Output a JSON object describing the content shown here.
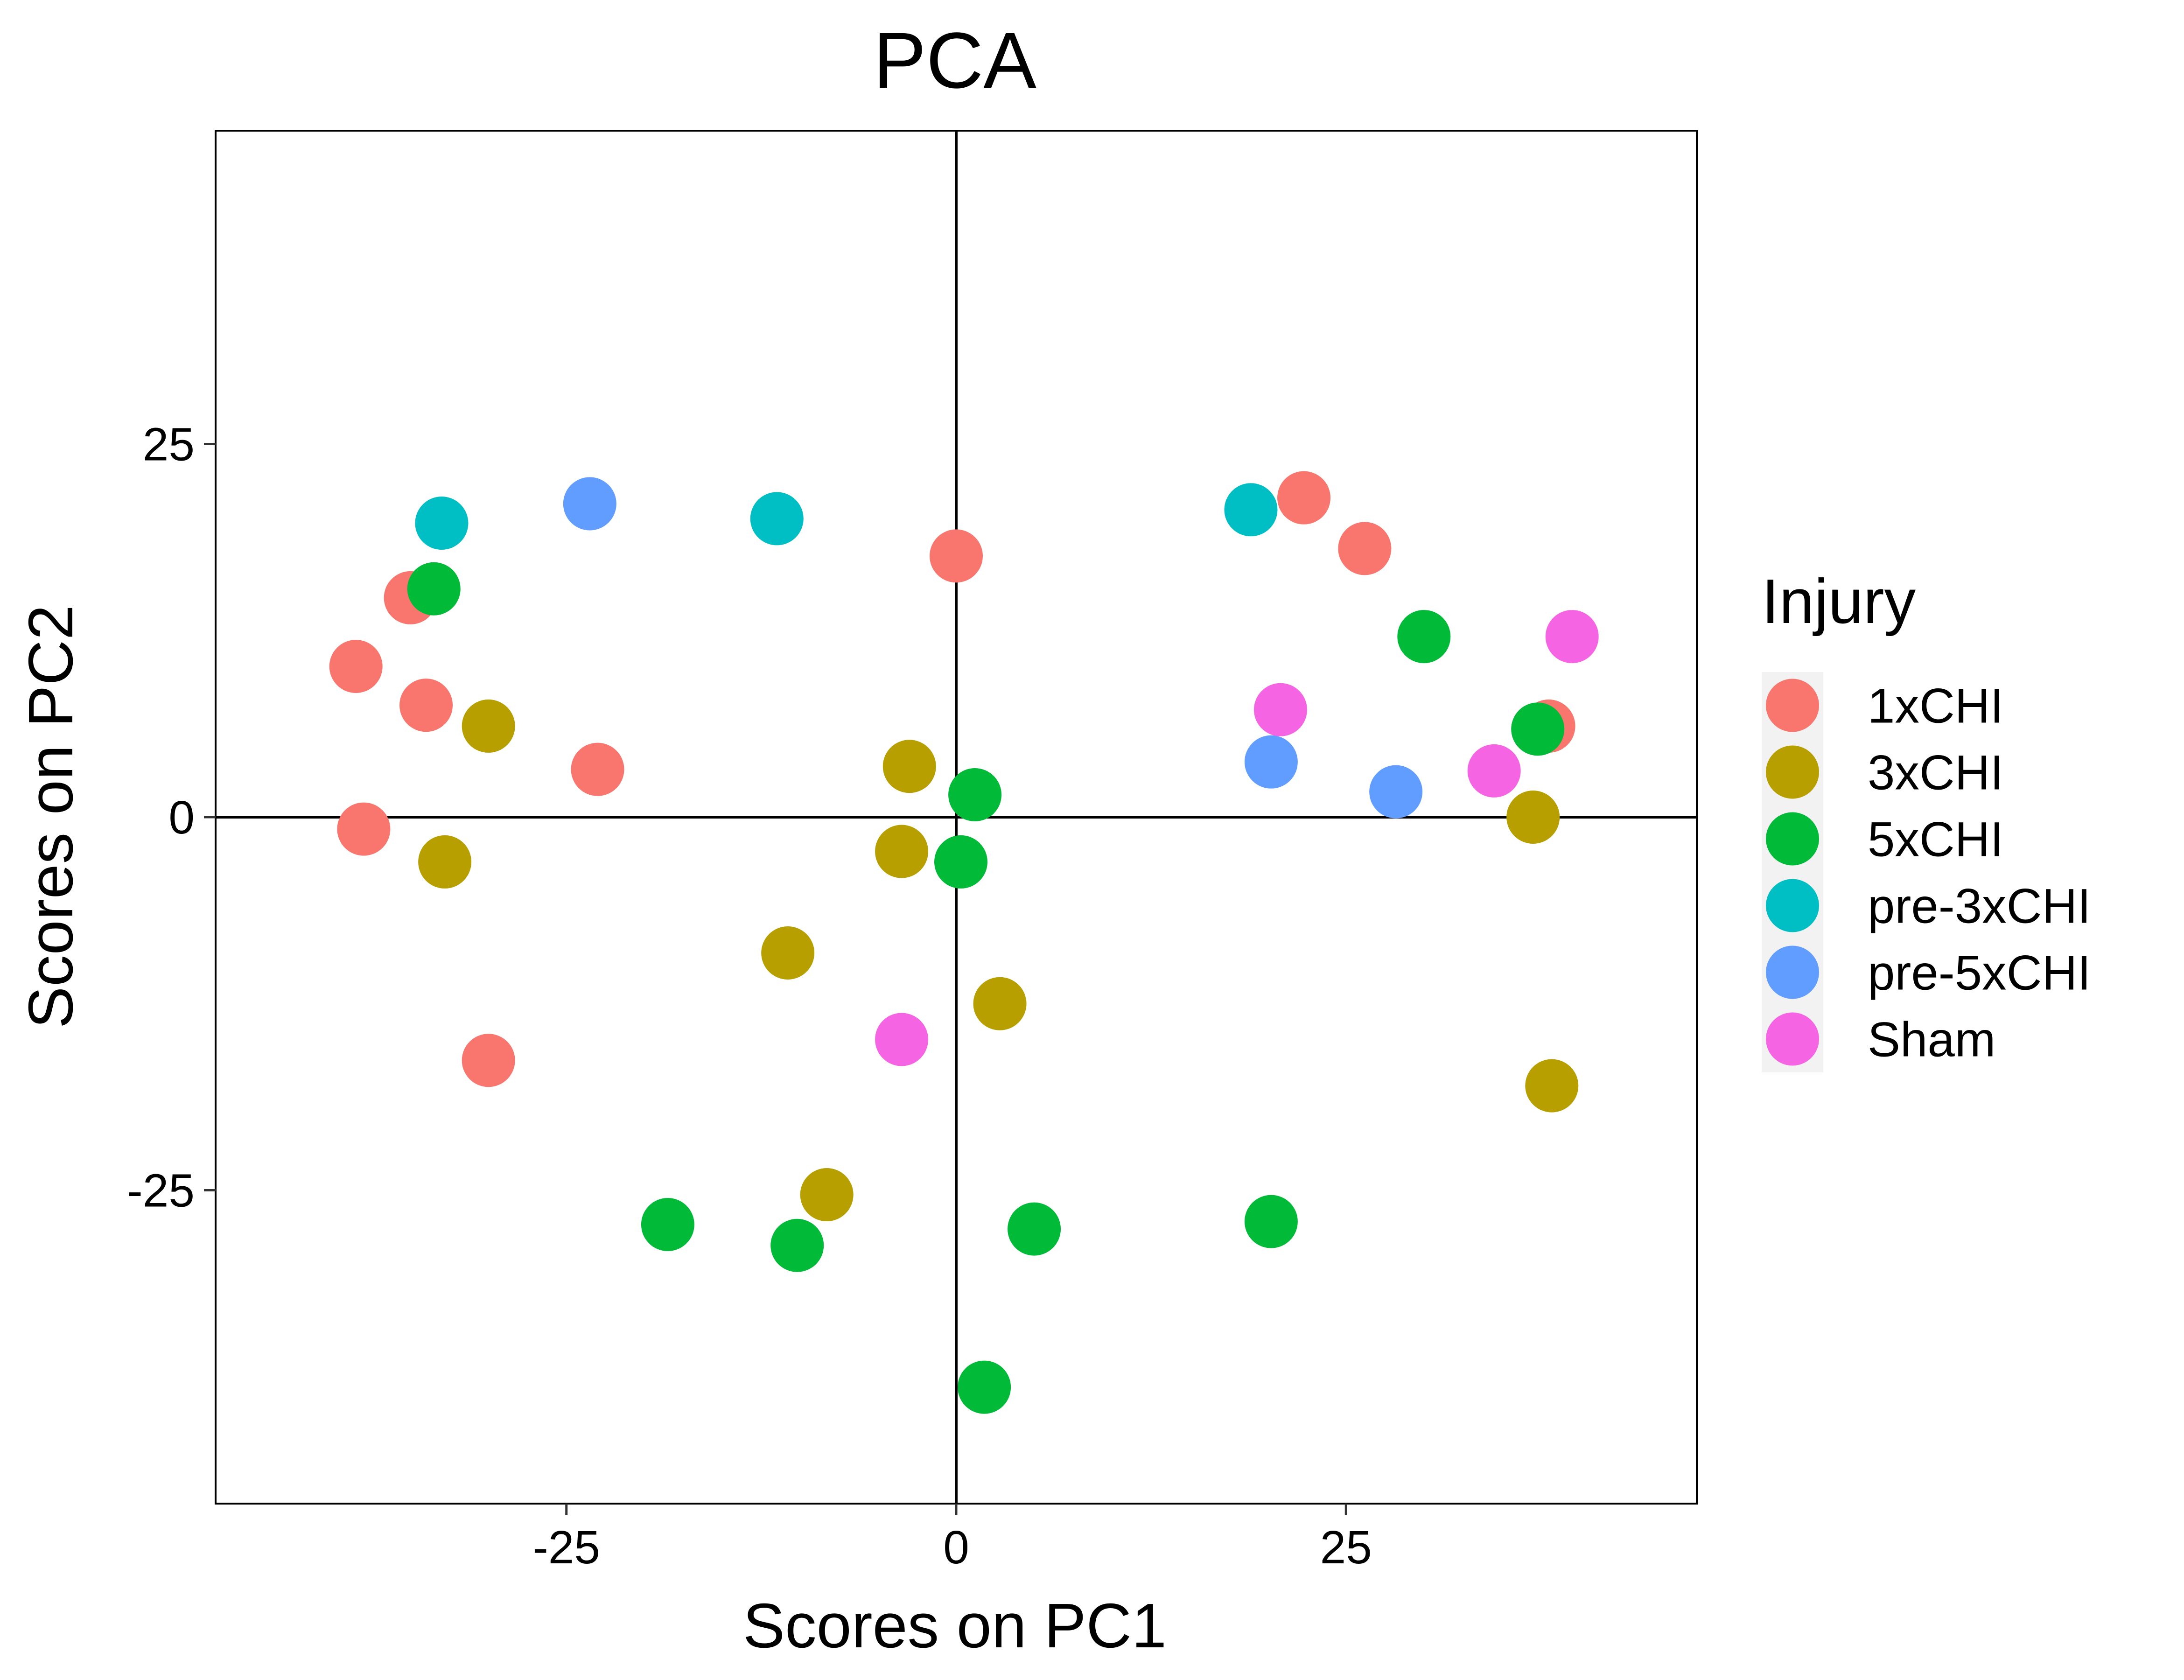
{
  "chart_data": {
    "type": "scatter",
    "title": "PCA",
    "xlabel": "Scores on PC1",
    "ylabel": "Scores on PC2",
    "xlim": [
      -47.5,
      47.5
    ],
    "ylim": [
      -46,
      46
    ],
    "xticks": [
      -25,
      0,
      25
    ],
    "yticks": [
      -25,
      0,
      25
    ],
    "xtick_labels": [
      "-25",
      "0",
      "25"
    ],
    "ytick_labels": [
      "-25",
      "0",
      "25"
    ],
    "grid": false,
    "zero_lines": true,
    "legend": {
      "title": "Injury",
      "position": "right"
    },
    "series": [
      {
        "name": "1xCHI",
        "color": "#F8766D",
        "points": [
          {
            "x": -38.5,
            "y": 10.1
          },
          {
            "x": -35.0,
            "y": 14.7
          },
          {
            "x": -34.0,
            "y": 7.5
          },
          {
            "x": -38.0,
            "y": -0.8
          },
          {
            "x": -23.0,
            "y": 3.2
          },
          {
            "x": -30.0,
            "y": -16.3
          },
          {
            "x": 0.0,
            "y": 17.5
          },
          {
            "x": 22.3,
            "y": 21.4
          },
          {
            "x": 26.2,
            "y": 18.0
          },
          {
            "x": 38.0,
            "y": 6.1
          }
        ]
      },
      {
        "name": "3xCHI",
        "color": "#B79F00",
        "points": [
          {
            "x": -30.0,
            "y": 6.1
          },
          {
            "x": -32.8,
            "y": -3.0
          },
          {
            "x": -3.0,
            "y": 3.4
          },
          {
            "x": -3.5,
            "y": -2.3
          },
          {
            "x": -10.8,
            "y": -9.1
          },
          {
            "x": 2.8,
            "y": -12.5
          },
          {
            "x": -8.3,
            "y": -25.3
          },
          {
            "x": 37.0,
            "y": 0.0
          },
          {
            "x": 38.2,
            "y": -18.0
          }
        ]
      },
      {
        "name": "5xCHI",
        "color": "#00BA38",
        "points": [
          {
            "x": -33.5,
            "y": 15.3
          },
          {
            "x": 1.2,
            "y": 1.5
          },
          {
            "x": 0.3,
            "y": -3.0
          },
          {
            "x": -18.5,
            "y": -27.3
          },
          {
            "x": -10.2,
            "y": -28.7
          },
          {
            "x": 5.0,
            "y": -27.6
          },
          {
            "x": 20.2,
            "y": -27.1
          },
          {
            "x": 1.8,
            "y": -38.2
          },
          {
            "x": 30.0,
            "y": 12.1
          },
          {
            "x": 37.3,
            "y": 5.9
          }
        ]
      },
      {
        "name": "pre-3xCHI",
        "color": "#00BFC4",
        "points": [
          {
            "x": -33.0,
            "y": 19.7
          },
          {
            "x": -11.5,
            "y": 20.0
          },
          {
            "x": 18.9,
            "y": 20.6
          }
        ]
      },
      {
        "name": "pre-5xCHI",
        "color": "#619CFF",
        "points": [
          {
            "x": -23.5,
            "y": 21.0
          },
          {
            "x": 20.2,
            "y": 3.7
          },
          {
            "x": 28.2,
            "y": 1.7
          }
        ]
      },
      {
        "name": "Sham",
        "color": "#F564E3",
        "points": [
          {
            "x": -3.5,
            "y": -14.9
          },
          {
            "x": 20.8,
            "y": 7.2
          },
          {
            "x": 34.5,
            "y": 3.1
          },
          {
            "x": 39.5,
            "y": 12.1
          }
        ]
      }
    ]
  }
}
